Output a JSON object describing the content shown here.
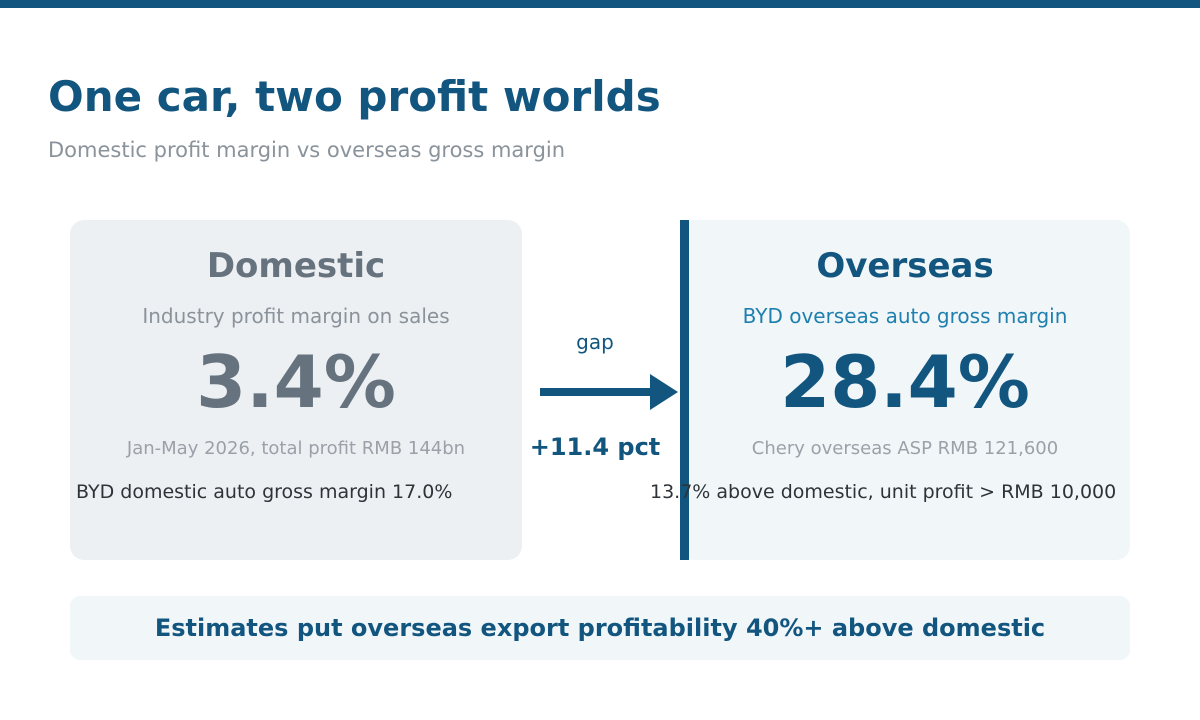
{
  "header": {
    "title": "One car, two profit worlds",
    "subtitle": "Domestic profit margin vs overseas gross margin"
  },
  "domestic": {
    "heading": "Domestic",
    "label": "Industry profit margin on sales",
    "value": "3.4%",
    "note": "Jan-May 2026, total profit RMB 144bn",
    "detail": "BYD domestic auto gross margin 17.0%"
  },
  "comparison": {
    "gap_label": "gap",
    "gap_value": "+11.4 pct"
  },
  "overseas": {
    "heading": "Overseas",
    "label": "BYD overseas auto gross margin",
    "value": "28.4%",
    "note": "Chery overseas ASP RMB 121,600",
    "detail": "13.7% above domestic, unit profit > RMB 10,000"
  },
  "footer": {
    "banner": "Estimates put overseas export profitability 40%+ above domestic"
  },
  "colors": {
    "primary": "#125680",
    "accent": "#1f7fae",
    "muted": "#66737f"
  }
}
